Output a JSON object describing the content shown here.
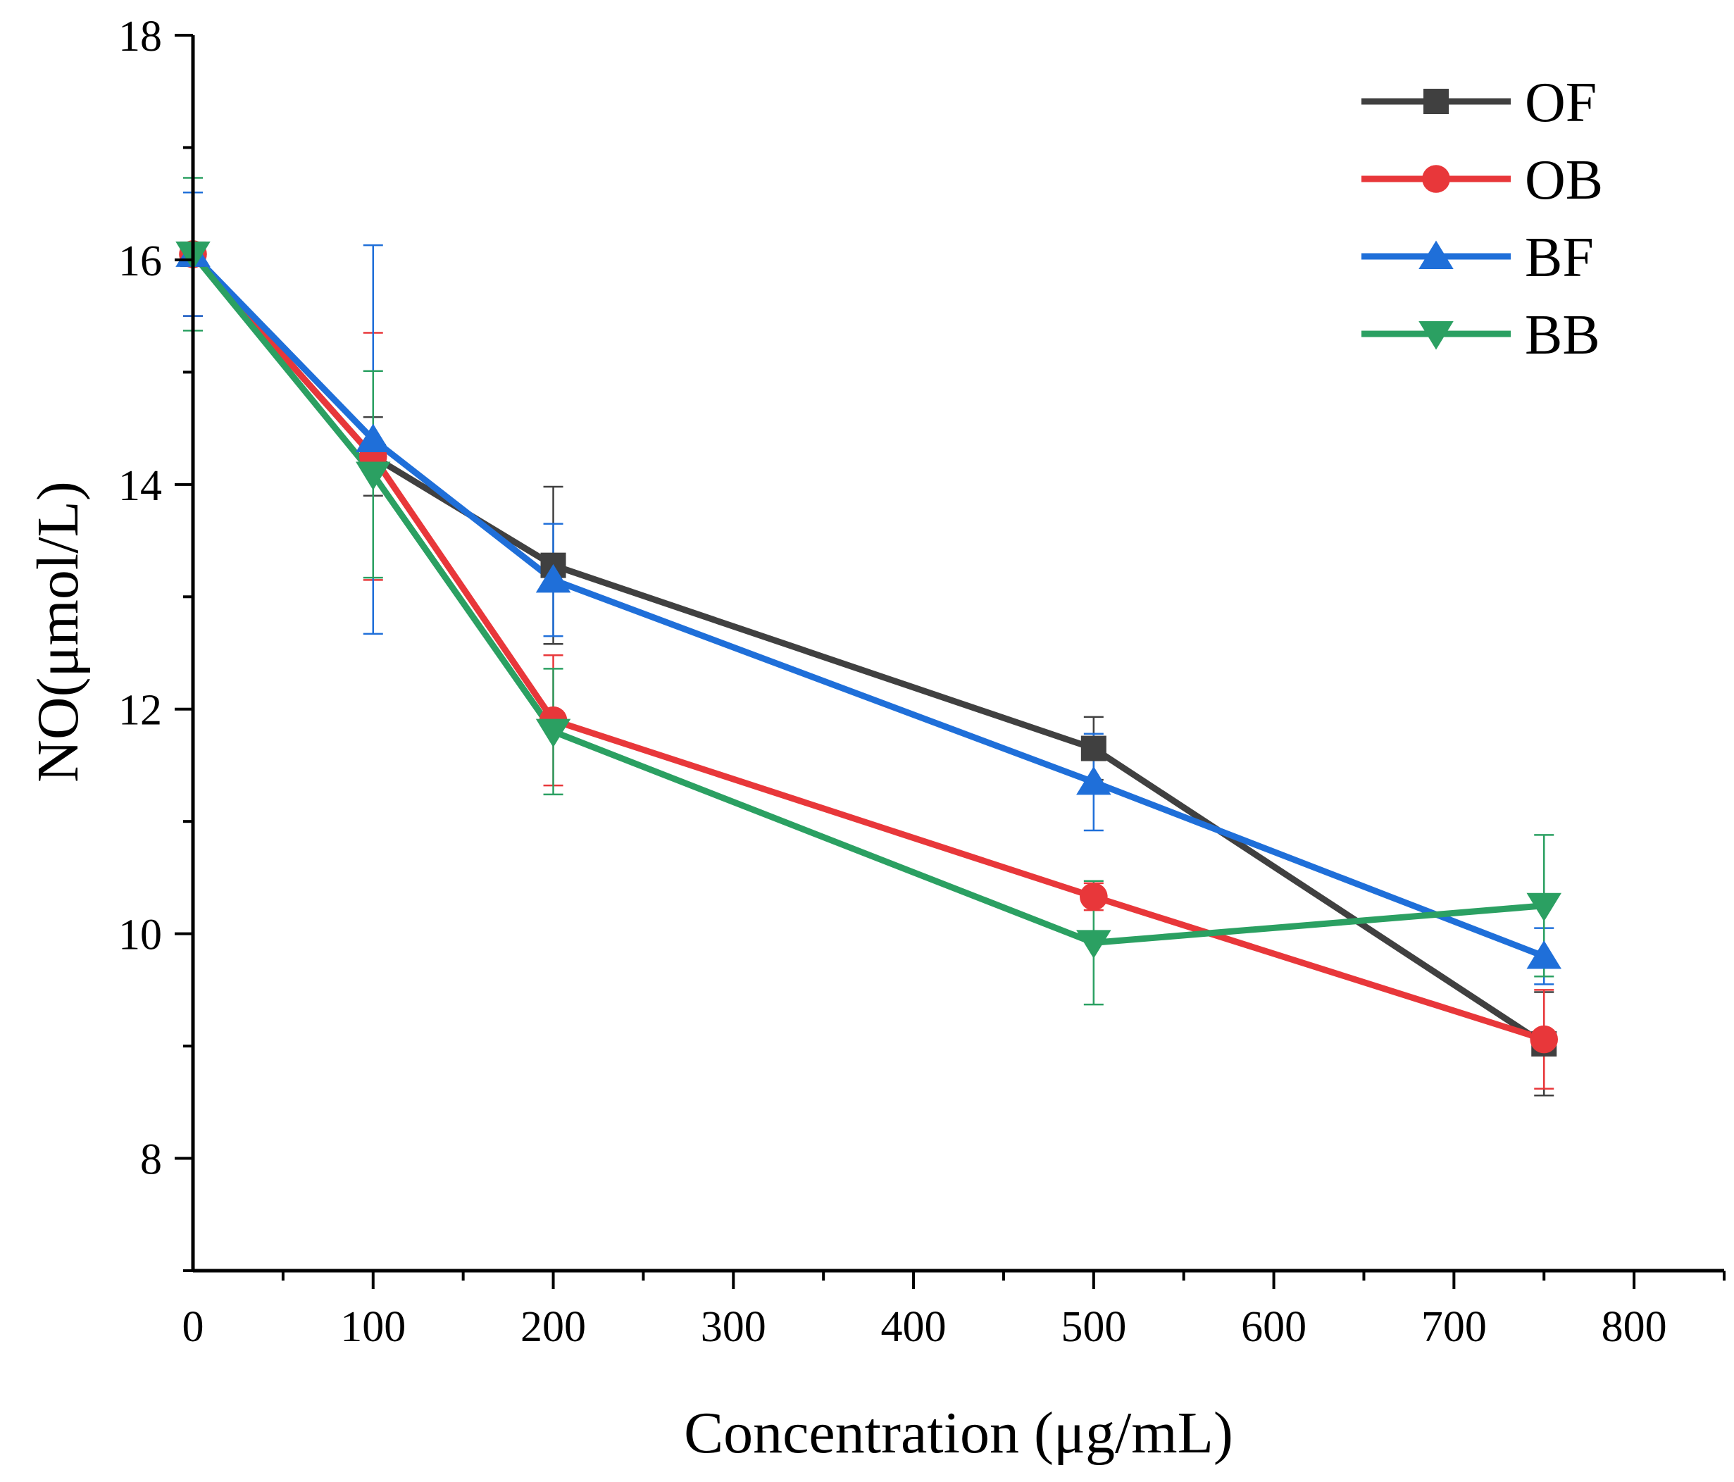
{
  "chart_data": {
    "type": "line",
    "xlabel": "Concentration (μg/mL)",
    "ylabel": "NO(μmol/L)",
    "xlim": [
      0,
      850
    ],
    "ylim": [
      7,
      18
    ],
    "x_ticks": [
      0,
      100,
      200,
      300,
      400,
      500,
      600,
      700,
      800
    ],
    "y_ticks": [
      8,
      10,
      12,
      14,
      16,
      18
    ],
    "legend_position": "top-right",
    "grid": false,
    "series": [
      {
        "name": "OF",
        "color": "#404040",
        "marker": "square",
        "points": [
          {
            "x": 0,
            "y": 16.05,
            "err": 0.55
          },
          {
            "x": 100,
            "y": 14.25,
            "err": 0.35
          },
          {
            "x": 200,
            "y": 13.28,
            "err": 0.7
          },
          {
            "x": 500,
            "y": 11.65,
            "err": 0.28
          },
          {
            "x": 750,
            "y": 9.02,
            "err": 0.46
          }
        ]
      },
      {
        "name": "OB",
        "color": "#e8373a",
        "marker": "circle",
        "points": [
          {
            "x": 0,
            "y": 16.05,
            "err": 0.55
          },
          {
            "x": 100,
            "y": 14.25,
            "err": 1.1
          },
          {
            "x": 200,
            "y": 11.9,
            "err": 0.58
          },
          {
            "x": 500,
            "y": 10.33,
            "err": 0.12
          },
          {
            "x": 750,
            "y": 9.06,
            "err": 0.44
          }
        ]
      },
      {
        "name": "BF",
        "color": "#1f6fd9",
        "marker": "triangle-up",
        "points": [
          {
            "x": 0,
            "y": 16.05,
            "err": 0.55
          },
          {
            "x": 100,
            "y": 14.4,
            "err": 1.73
          },
          {
            "x": 200,
            "y": 13.15,
            "err": 0.5
          },
          {
            "x": 500,
            "y": 11.35,
            "err": 0.43
          },
          {
            "x": 750,
            "y": 9.8,
            "err": 0.25
          }
        ]
      },
      {
        "name": "BB",
        "color": "#2ba062",
        "marker": "triangle-down",
        "points": [
          {
            "x": 0,
            "y": 16.05,
            "err": 0.68
          },
          {
            "x": 100,
            "y": 14.09,
            "err": 0.92
          },
          {
            "x": 200,
            "y": 11.8,
            "err": 0.56
          },
          {
            "x": 500,
            "y": 9.92,
            "err": 0.55
          },
          {
            "x": 750,
            "y": 10.25,
            "err": 0.63
          }
        ]
      }
    ]
  }
}
